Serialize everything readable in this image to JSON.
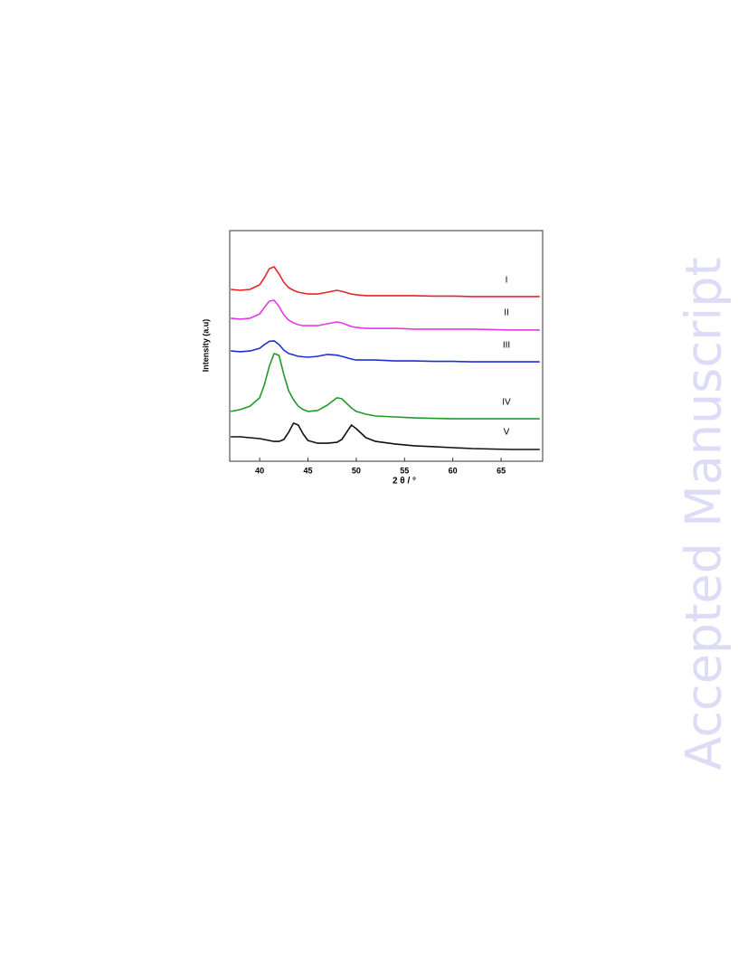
{
  "watermark": "Accepted Manuscript",
  "chart_data": {
    "type": "line",
    "xlabel": "2 θ / °",
    "ylabel": "Intensity  (a.u)",
    "xlim": [
      36.9,
      69.3
    ],
    "ylim": [
      0,
      100
    ],
    "xticks": [
      40,
      45,
      50,
      55,
      60,
      65
    ],
    "x": [
      37,
      38,
      39,
      40,
      40.5,
      41,
      41.5,
      42,
      42.5,
      43,
      43.5,
      44,
      44.5,
      45,
      46,
      47,
      48,
      48.5,
      49,
      49.5,
      50,
      51,
      52,
      54,
      56,
      58,
      60,
      62,
      64,
      66,
      68,
      69
    ],
    "series": [
      {
        "name": "I",
        "color": "#e8242a",
        "values": [
          74.5,
          74.1,
          74.5,
          76.5,
          79.6,
          83.5,
          84.3,
          81.2,
          77.6,
          75.3,
          74.1,
          73.3,
          72.9,
          72.5,
          72.5,
          73.3,
          74.1,
          73.7,
          73.1,
          72.5,
          72.2,
          71.8,
          71.8,
          71.8,
          71.8,
          71.6,
          71.6,
          71.4,
          71.4,
          71.4,
          71.4,
          71.4
        ]
      },
      {
        "name": "II",
        "color": "#e03be0",
        "values": [
          62.0,
          61.6,
          62.0,
          63.9,
          66.7,
          69.4,
          69.8,
          67.1,
          63.5,
          61.2,
          60.0,
          59.2,
          58.8,
          58.8,
          58.8,
          59.6,
          60.4,
          60.0,
          59.2,
          58.4,
          58.0,
          57.6,
          57.6,
          57.6,
          57.3,
          57.3,
          57.3,
          57.3,
          57.1,
          56.9,
          56.9,
          56.9
        ]
      },
      {
        "name": "III",
        "color": "#1f2fd6",
        "values": [
          47.8,
          47.5,
          47.8,
          49.0,
          50.6,
          52.0,
          52.2,
          50.6,
          48.2,
          46.7,
          46.1,
          45.5,
          45.3,
          45.1,
          45.5,
          46.3,
          46.0,
          45.5,
          44.9,
          44.3,
          43.9,
          43.9,
          43.9,
          43.5,
          43.5,
          43.3,
          43.3,
          43.1,
          43.1,
          43.1,
          43.1,
          43.1
        ]
      },
      {
        "name": "IV",
        "color": "#1e9a2a",
        "values": [
          21.6,
          22.4,
          23.9,
          27.5,
          33.3,
          41.2,
          46.7,
          45.9,
          37.6,
          30.6,
          26.7,
          23.9,
          22.4,
          21.6,
          22.0,
          24.3,
          27.5,
          27.1,
          25.1,
          23.1,
          21.6,
          20.4,
          19.6,
          19.2,
          18.8,
          18.6,
          18.4,
          18.4,
          18.4,
          18.4,
          18.4,
          18.4
        ]
      },
      {
        "name": "V",
        "color": "#111111",
        "values": [
          10.6,
          10.6,
          10.2,
          9.8,
          9.4,
          9.0,
          8.6,
          8.6,
          9.4,
          12.5,
          16.5,
          15.7,
          11.8,
          9.0,
          7.8,
          7.8,
          8.2,
          9.4,
          12.5,
          15.7,
          14.1,
          10.2,
          8.6,
          7.5,
          6.7,
          6.3,
          5.9,
          5.5,
          5.3,
          5.1,
          5.1,
          5.1
        ]
      }
    ]
  }
}
